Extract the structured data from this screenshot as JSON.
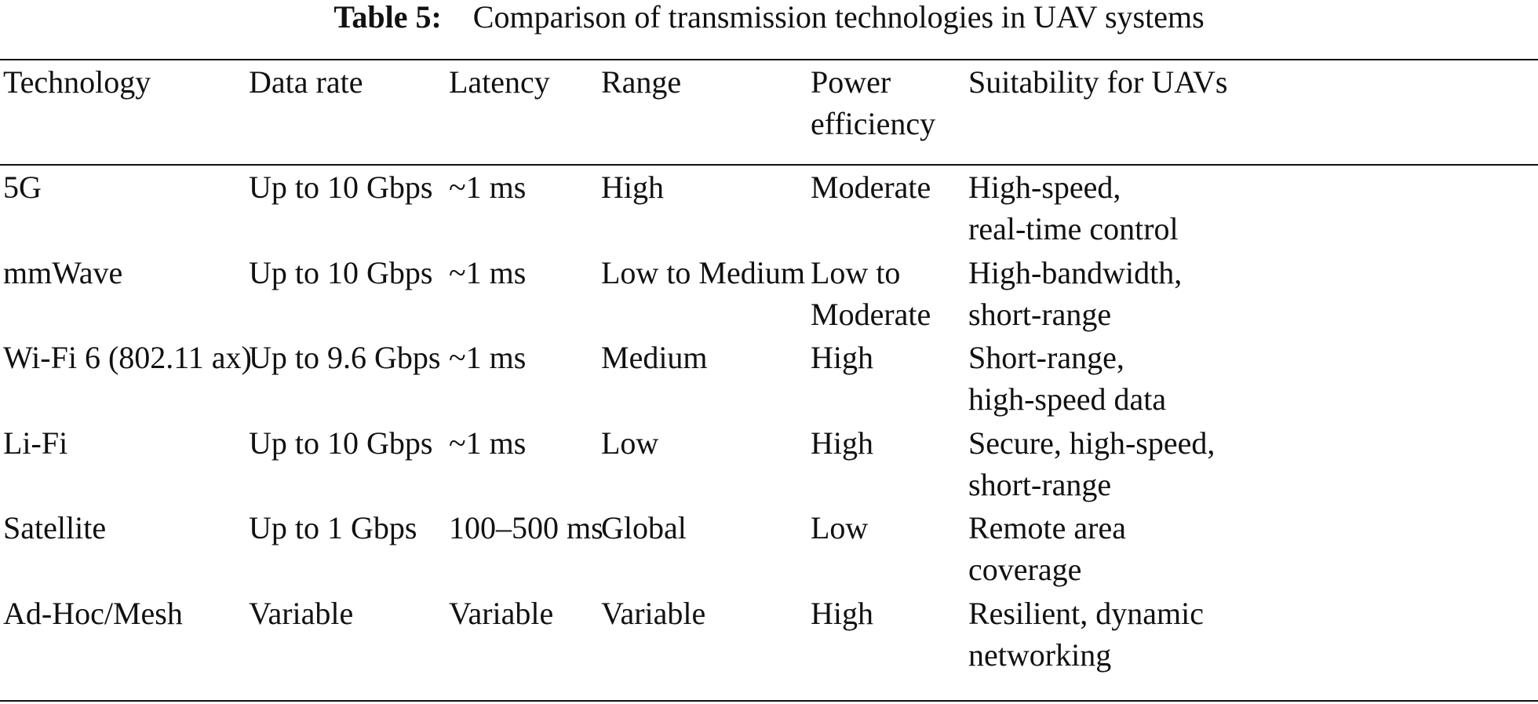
{
  "caption": {
    "label": "Table 5:",
    "text": "Comparison of transmission technologies in UAV systems"
  },
  "table": {
    "headers": [
      [
        "Technology"
      ],
      [
        "Data rate"
      ],
      [
        "Latency"
      ],
      [
        "Range"
      ],
      [
        "Power",
        "efficiency"
      ],
      [
        "Suitability for UAVs"
      ]
    ],
    "rows": [
      {
        "technology": [
          "5G"
        ],
        "data_rate": [
          "Up to 10 Gbps"
        ],
        "latency": [
          "~1 ms"
        ],
        "range": [
          "High"
        ],
        "power_efficiency": [
          "Moderate"
        ],
        "suitability": [
          "High-speed,",
          "real-time control"
        ]
      },
      {
        "technology": [
          "mmWave"
        ],
        "data_rate": [
          "Up to 10 Gbps"
        ],
        "latency": [
          "~1 ms"
        ],
        "range": [
          "Low to Medium"
        ],
        "power_efficiency": [
          "Low to",
          "Moderate"
        ],
        "suitability": [
          "High-bandwidth,",
          "short-range"
        ]
      },
      {
        "technology": [
          "Wi-Fi 6 (802.11 ax)"
        ],
        "data_rate": [
          "Up to 9.6 Gbps"
        ],
        "latency": [
          "~1 ms"
        ],
        "range": [
          "Medium"
        ],
        "power_efficiency": [
          "High"
        ],
        "suitability": [
          "Short-range,",
          "high-speed data"
        ]
      },
      {
        "technology": [
          "Li-Fi"
        ],
        "data_rate": [
          "Up to 10 Gbps"
        ],
        "latency": [
          "~1 ms"
        ],
        "range": [
          "Low"
        ],
        "power_efficiency": [
          "High"
        ],
        "suitability": [
          "Secure, high-speed,",
          "short-range"
        ]
      },
      {
        "technology": [
          "Satellite"
        ],
        "data_rate": [
          "Up to 1 Gbps"
        ],
        "latency": [
          "100–500 ms"
        ],
        "range": [
          "Global"
        ],
        "power_efficiency": [
          "Low"
        ],
        "suitability": [
          "Remote area",
          "coverage"
        ]
      },
      {
        "technology": [
          "Ad-Hoc/Mesh"
        ],
        "data_rate": [
          "Variable"
        ],
        "latency": [
          "Variable"
        ],
        "range": [
          "Variable"
        ],
        "power_efficiency": [
          "High"
        ],
        "suitability": [
          "Resilient, dynamic",
          "networking"
        ]
      }
    ]
  }
}
